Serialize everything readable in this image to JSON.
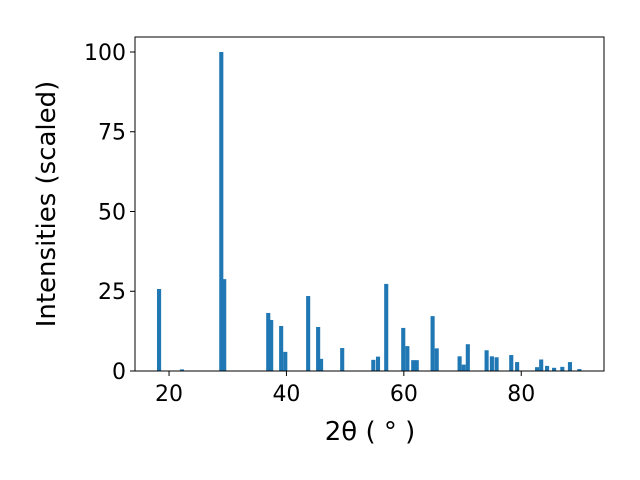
{
  "chart_data": {
    "type": "bar",
    "xlabel": "2θ ( ° )",
    "ylabel": "Intensities (scaled)",
    "color": "#1f77b4",
    "x": [
      18.3,
      22.2,
      28.9,
      29.4,
      36.9,
      37.4,
      39.1,
      39.8,
      43.7,
      45.4,
      45.9,
      49.5,
      54.8,
      55.6,
      57.0,
      59.9,
      60.6,
      61.6,
      62.2,
      64.9,
      65.6,
      69.5,
      70.2,
      70.9,
      74.1,
      75.0,
      75.8,
      78.3,
      79.3,
      82.7,
      83.4,
      84.4,
      85.6,
      87.0,
      88.3,
      89.9
    ],
    "values": [
      25.7,
      0.5,
      100,
      28.8,
      18.2,
      16,
      14.1,
      6,
      23.5,
      13.8,
      3.8,
      7.2,
      3.5,
      4.5,
      27.3,
      13.5,
      7.8,
      3.4,
      3.4,
      17.2,
      7.1,
      4.6,
      2,
      8.4,
      6.5,
      4.6,
      4.3,
      5,
      2.8,
      1.2,
      3.6,
      1.6,
      1,
      1.3,
      2.8,
      0.6
    ],
    "xlim": [
      14.2,
      94.1
    ],
    "xticks": [
      20,
      40,
      60,
      80
    ],
    "ylim": [
      0,
      104.7
    ],
    "yticks": [
      0,
      25,
      50,
      75,
      100
    ],
    "grid": false
  }
}
